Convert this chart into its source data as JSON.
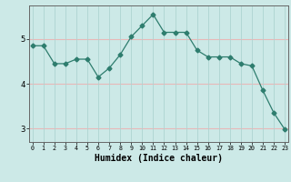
{
  "x": [
    0,
    1,
    2,
    3,
    4,
    5,
    6,
    7,
    8,
    9,
    10,
    11,
    12,
    13,
    14,
    15,
    16,
    17,
    18,
    19,
    20,
    21,
    22,
    23
  ],
  "y": [
    4.85,
    4.85,
    4.45,
    4.45,
    4.55,
    4.55,
    4.15,
    4.35,
    4.65,
    5.05,
    5.3,
    5.55,
    5.15,
    5.15,
    5.15,
    4.75,
    4.6,
    4.6,
    4.6,
    4.45,
    4.4,
    3.85,
    3.35,
    2.98
  ],
  "line_color": "#2e7d6e",
  "marker": "D",
  "marker_size": 2.5,
  "bg_color": "#cce9e7",
  "hgrid_color": "#e8b8b8",
  "vgrid_color": "#aed4d1",
  "xlabel": "Humidex (Indice chaleur)",
  "xlabel_fontsize": 7,
  "yticks": [
    3,
    4,
    5
  ],
  "xticks": [
    0,
    1,
    2,
    3,
    4,
    5,
    6,
    7,
    8,
    9,
    10,
    11,
    12,
    13,
    14,
    15,
    16,
    17,
    18,
    19,
    20,
    21,
    22,
    23
  ],
  "ylim": [
    2.7,
    5.75
  ],
  "xlim": [
    -0.3,
    23.3
  ]
}
